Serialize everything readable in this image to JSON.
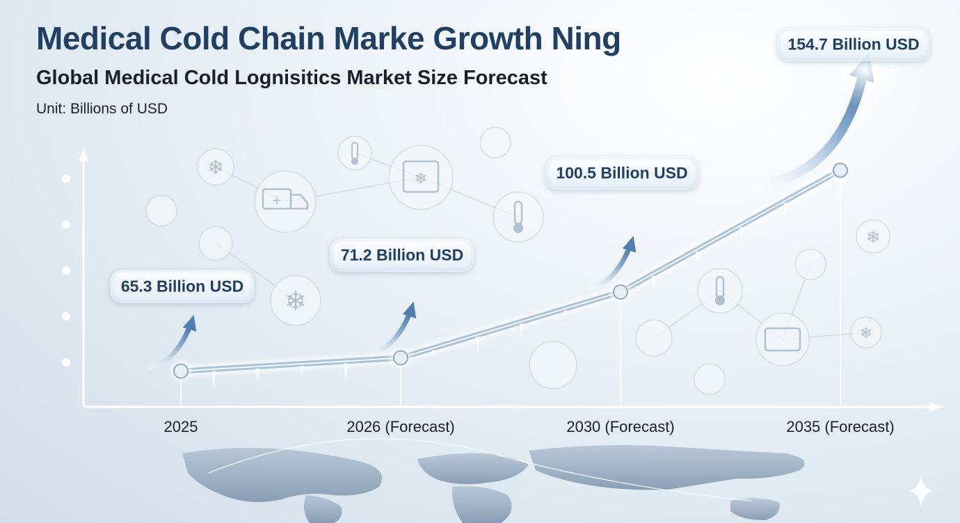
{
  "chart_data": {
    "type": "line",
    "title": "Medical Cold Chain Marke Growth Ning",
    "subtitle": "Global Medical Cold Lognisitics Market Size Forecast",
    "unit": "Unit: Billions of USD",
    "categories": [
      "2025",
      "2026 (Forecast)",
      "2030 (Forecast)",
      "2035 (Forecast)"
    ],
    "values": [
      65.3,
      71.2,
      100.5,
      154.7
    ],
    "data_labels": [
      "65.3 Billion USD",
      "71.2 Billion USD",
      "100.5 Billion USD",
      "154.7 Billion USD"
    ],
    "xlabel": "",
    "ylabel": "",
    "grid": false,
    "legend": "none"
  },
  "colors": {
    "title": "#1f3f63",
    "line": "#a9c3dd",
    "arrow": "#4f7fae",
    "axis": "#ffffff"
  },
  "decor_icons": [
    "snowflake-icon",
    "ambulance-icon",
    "thermometer-icon",
    "freezer-icon",
    "world-map"
  ]
}
